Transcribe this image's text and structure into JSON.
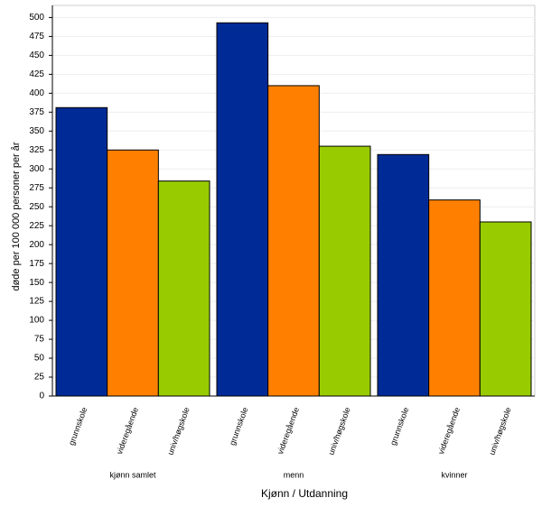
{
  "chart_data": {
    "type": "bar",
    "y_label": "døde per 100 000 personer per år",
    "x_label": "Kjønn / Utdanning",
    "categories": [
      "kjønn samlet",
      "menn",
      "kvinner"
    ],
    "series": [
      {
        "name": "grunnskole",
        "color": "#002a96",
        "values": [
          381,
          493,
          319
        ]
      },
      {
        "name": "videregående",
        "color": "#ff8000",
        "values": [
          325,
          410,
          259
        ]
      },
      {
        "name": "univ/høgskole",
        "color": "#99cc00",
        "values": [
          284,
          330,
          230
        ]
      }
    ],
    "ylim": [
      0,
      516
    ],
    "yticks": [
      0,
      25,
      50,
      75,
      100,
      125,
      150,
      175,
      200,
      225,
      250,
      275,
      300,
      325,
      350,
      375,
      400,
      425,
      450,
      475,
      500
    ],
    "grid": true
  }
}
